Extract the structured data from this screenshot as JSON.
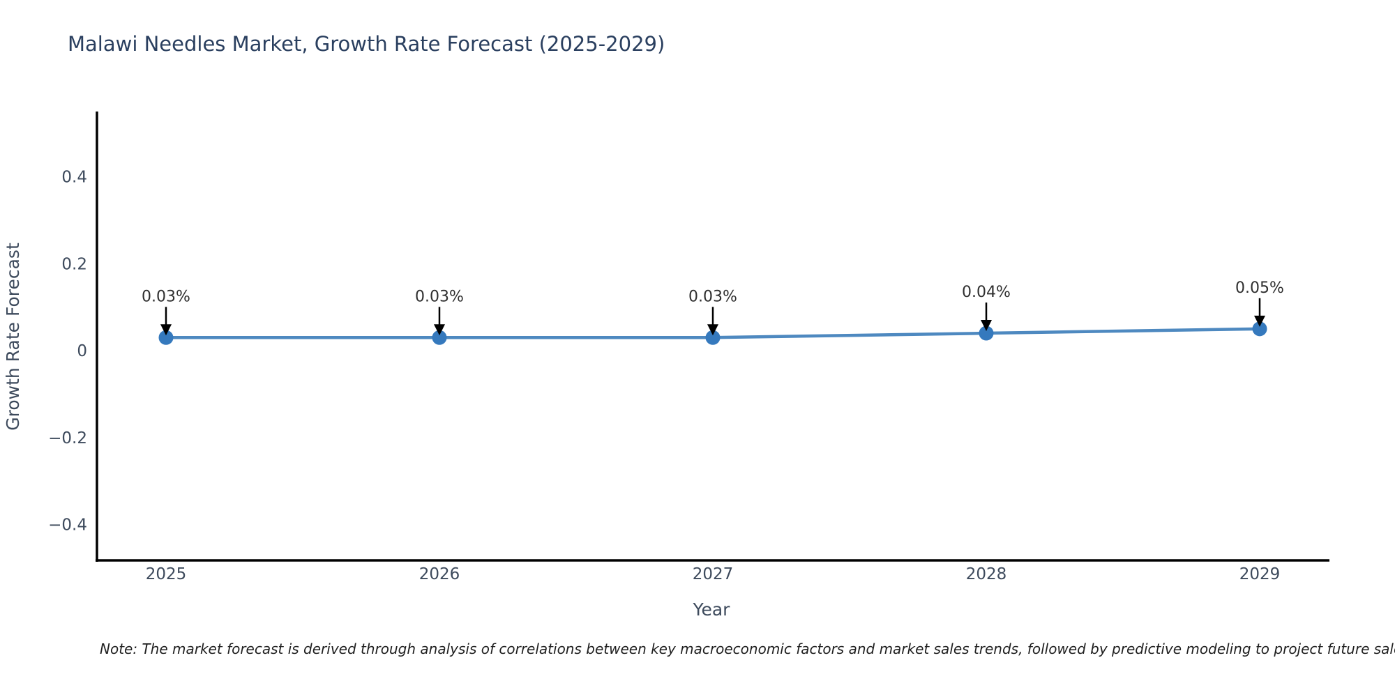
{
  "chart_data": {
    "type": "line",
    "title": "Malawi Needles Market, Growth Rate Forecast (2025-2029)",
    "xlabel": "Year",
    "ylabel": "Growth Rate Forecast",
    "x": [
      2025,
      2026,
      2027,
      2028,
      2029
    ],
    "xticklabels": [
      "2025",
      "2026",
      "2027",
      "2028",
      "2029"
    ],
    "series": [
      {
        "name": "Growth Rate Forecast",
        "values": [
          0.03,
          0.03,
          0.03,
          0.04,
          0.05
        ]
      }
    ],
    "point_labels": [
      "0.03%",
      "0.03%",
      "0.03%",
      "0.04%",
      "0.05%"
    ],
    "yticks": [
      {
        "value": -0.4,
        "label": "−0.4"
      },
      {
        "value": -0.2,
        "label": "−0.2"
      },
      {
        "value": 0,
        "label": "0"
      },
      {
        "value": 0.2,
        "label": "0.2"
      },
      {
        "value": 0.4,
        "label": "0.4"
      }
    ],
    "ylim": [
      -0.487,
      0.551
    ],
    "grid": false,
    "legend_position": "none",
    "colors": {
      "line": "#4e89c0",
      "marker": "#3579bd",
      "axis": "#000000",
      "title": "#2a3f5f",
      "tick": "#3d4a5c",
      "annotation": "#2f2f2f",
      "arrow": "#000000",
      "background": "#ffffff"
    }
  },
  "note": {
    "text": "Note: The market forecast is derived through analysis of correlations between key macroeconomic factors and market sales trends, followed by predictive modeling to project future sales."
  }
}
